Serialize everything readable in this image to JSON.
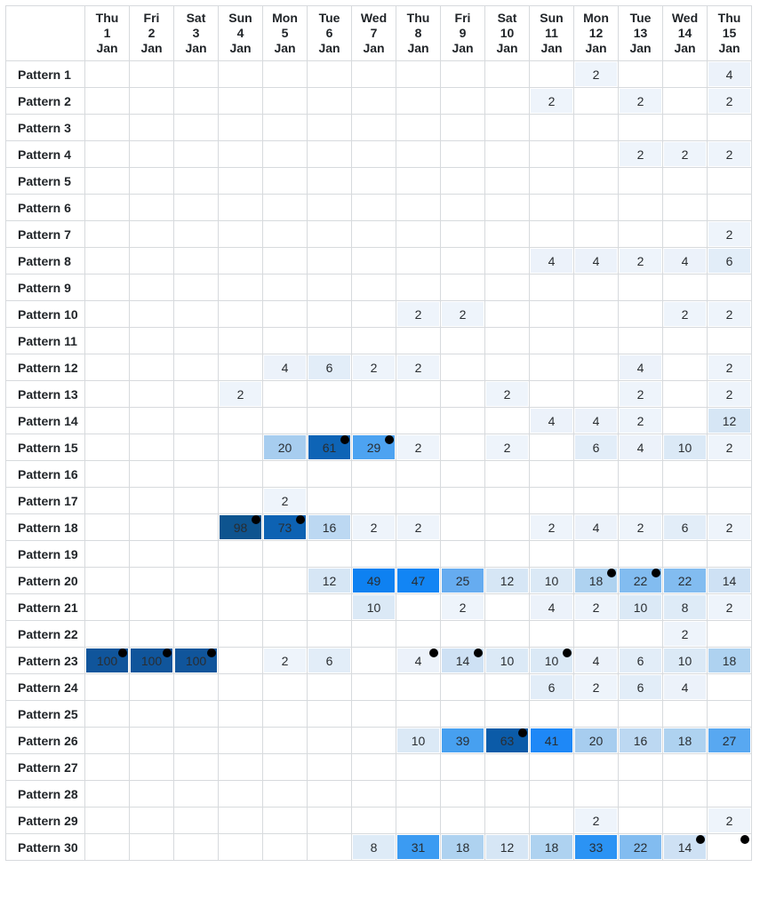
{
  "chart_data": {
    "type": "heatmap",
    "title": "",
    "xlabel": "",
    "ylabel": "",
    "legend": "none",
    "columns": [
      {
        "day": "Thu",
        "date": "1",
        "month": "Jan"
      },
      {
        "day": "Fri",
        "date": "2",
        "month": "Jan"
      },
      {
        "day": "Sat",
        "date": "3",
        "month": "Jan"
      },
      {
        "day": "Sun",
        "date": "4",
        "month": "Jan"
      },
      {
        "day": "Mon",
        "date": "5",
        "month": "Jan"
      },
      {
        "day": "Tue",
        "date": "6",
        "month": "Jan"
      },
      {
        "day": "Wed",
        "date": "7",
        "month": "Jan"
      },
      {
        "day": "Thu",
        "date": "8",
        "month": "Jan"
      },
      {
        "day": "Fri",
        "date": "9",
        "month": "Jan"
      },
      {
        "day": "Sat",
        "date": "10",
        "month": "Jan"
      },
      {
        "day": "Sun",
        "date": "11",
        "month": "Jan"
      },
      {
        "day": "Mon",
        "date": "12",
        "month": "Jan"
      },
      {
        "day": "Tue",
        "date": "13",
        "month": "Jan"
      },
      {
        "day": "Wed",
        "date": "14",
        "month": "Jan"
      },
      {
        "day": "Thu",
        "date": "15",
        "month": "Jan"
      }
    ],
    "rows": [
      "Pattern 1",
      "Pattern 2",
      "Pattern 3",
      "Pattern 4",
      "Pattern 5",
      "Pattern 6",
      "Pattern 7",
      "Pattern 8",
      "Pattern 9",
      "Pattern 10",
      "Pattern 11",
      "Pattern 12",
      "Pattern 13",
      "Pattern 14",
      "Pattern 15",
      "Pattern 16",
      "Pattern 17",
      "Pattern 18",
      "Pattern 19",
      "Pattern 20",
      "Pattern 21",
      "Pattern 22",
      "Pattern 23",
      "Pattern 24",
      "Pattern 25",
      "Pattern 26",
      "Pattern 27",
      "Pattern 28",
      "Pattern 29",
      "Pattern 30"
    ],
    "values": [
      [
        null,
        null,
        null,
        null,
        null,
        null,
        null,
        null,
        null,
        null,
        null,
        2,
        null,
        null,
        4
      ],
      [
        null,
        null,
        null,
        null,
        null,
        null,
        null,
        null,
        null,
        null,
        2,
        null,
        2,
        null,
        2
      ],
      [
        null,
        null,
        null,
        null,
        null,
        null,
        null,
        null,
        null,
        null,
        null,
        null,
        null,
        null,
        null
      ],
      [
        null,
        null,
        null,
        null,
        null,
        null,
        null,
        null,
        null,
        null,
        null,
        null,
        2,
        2,
        2
      ],
      [
        null,
        null,
        null,
        null,
        null,
        null,
        null,
        null,
        null,
        null,
        null,
        null,
        null,
        null,
        null
      ],
      [
        null,
        null,
        null,
        null,
        null,
        null,
        null,
        null,
        null,
        null,
        null,
        null,
        null,
        null,
        null
      ],
      [
        null,
        null,
        null,
        null,
        null,
        null,
        null,
        null,
        null,
        null,
        null,
        null,
        null,
        null,
        2
      ],
      [
        null,
        null,
        null,
        null,
        null,
        null,
        null,
        null,
        null,
        null,
        4,
        4,
        2,
        4,
        6
      ],
      [
        null,
        null,
        null,
        null,
        null,
        null,
        null,
        null,
        null,
        null,
        null,
        null,
        null,
        null,
        null
      ],
      [
        null,
        null,
        null,
        null,
        null,
        null,
        null,
        2,
        2,
        null,
        null,
        null,
        null,
        2,
        2
      ],
      [
        null,
        null,
        null,
        null,
        null,
        null,
        null,
        null,
        null,
        null,
        null,
        null,
        null,
        null,
        null
      ],
      [
        null,
        null,
        null,
        null,
        4,
        6,
        2,
        2,
        null,
        null,
        null,
        null,
        4,
        null,
        2
      ],
      [
        null,
        null,
        null,
        2,
        null,
        null,
        null,
        null,
        null,
        2,
        null,
        null,
        2,
        null,
        2
      ],
      [
        null,
        null,
        null,
        null,
        null,
        null,
        null,
        null,
        null,
        null,
        4,
        4,
        2,
        null,
        12
      ],
      [
        null,
        null,
        null,
        null,
        20,
        61,
        29,
        2,
        null,
        2,
        null,
        6,
        4,
        10,
        2
      ],
      [
        null,
        null,
        null,
        null,
        null,
        null,
        null,
        null,
        null,
        null,
        null,
        null,
        null,
        null,
        null
      ],
      [
        null,
        null,
        null,
        null,
        2,
        null,
        null,
        null,
        null,
        null,
        null,
        null,
        null,
        null,
        null
      ],
      [
        null,
        null,
        null,
        98,
        73,
        16,
        2,
        2,
        null,
        null,
        2,
        4,
        2,
        6,
        2
      ],
      [
        null,
        null,
        null,
        null,
        null,
        null,
        null,
        null,
        null,
        null,
        null,
        null,
        null,
        null,
        null
      ],
      [
        null,
        null,
        null,
        null,
        null,
        12,
        49,
        47,
        25,
        12,
        10,
        18,
        22,
        22,
        14
      ],
      [
        null,
        null,
        null,
        null,
        null,
        null,
        10,
        null,
        2,
        null,
        4,
        2,
        10,
        8,
        2
      ],
      [
        null,
        null,
        null,
        null,
        null,
        null,
        null,
        null,
        null,
        null,
        null,
        null,
        null,
        2,
        null
      ],
      [
        100,
        100,
        100,
        null,
        2,
        6,
        null,
        4,
        14,
        10,
        10,
        4,
        6,
        10,
        18
      ],
      [
        null,
        null,
        null,
        null,
        null,
        null,
        null,
        null,
        null,
        null,
        6,
        2,
        6,
        4,
        null
      ],
      [
        null,
        null,
        null,
        null,
        null,
        null,
        null,
        null,
        null,
        null,
        null,
        null,
        null,
        null,
        null
      ],
      [
        null,
        null,
        null,
        null,
        null,
        null,
        null,
        10,
        39,
        63,
        41,
        20,
        16,
        18,
        27
      ],
      [
        null,
        null,
        null,
        null,
        null,
        null,
        null,
        null,
        null,
        null,
        null,
        null,
        null,
        null,
        null
      ],
      [
        null,
        null,
        null,
        null,
        null,
        null,
        null,
        null,
        null,
        null,
        null,
        null,
        null,
        null,
        null
      ],
      [
        null,
        null,
        null,
        null,
        null,
        null,
        null,
        null,
        null,
        null,
        null,
        2,
        null,
        null,
        2
      ],
      [
        null,
        null,
        null,
        null,
        null,
        null,
        8,
        31,
        18,
        12,
        18,
        33,
        22,
        14,
        null
      ]
    ],
    "dots": [
      [
        14,
        5
      ],
      [
        14,
        6
      ],
      [
        17,
        3
      ],
      [
        17,
        4
      ],
      [
        19,
        11
      ],
      [
        19,
        12
      ],
      [
        22,
        0
      ],
      [
        22,
        1
      ],
      [
        22,
        2
      ],
      [
        22,
        7
      ],
      [
        22,
        8
      ],
      [
        22,
        10
      ],
      [
        25,
        9
      ],
      [
        29,
        13
      ],
      [
        29,
        14
      ]
    ],
    "color_scale": {
      "2": "#eef4fb",
      "4": "#ecf2fa",
      "6": "#e2edf8",
      "8": "#deebf7",
      "10": "#dbe9f6",
      "12": "#d6e6f5",
      "14": "#cee1f4",
      "16": "#bcd8f2",
      "18": "#aed2f0",
      "20": "#a7cdef",
      "22": "#82bcf0",
      "25": "#66acf0",
      "27": "#58a8f1",
      "29": "#4da3f1",
      "31": "#3b9bf2",
      "33": "#2b93f4",
      "39": "#47a0f0",
      "41": "#1e88f7",
      "47": "#1285f4",
      "49": "#0e81f1",
      "61": "#0e64b6",
      "63": "#0b5ba8",
      "73": "#0d62b3",
      "98": "#0e548f",
      "100": "#10559b"
    },
    "empty_color": "#ffffff",
    "dot_color": "#000000"
  }
}
